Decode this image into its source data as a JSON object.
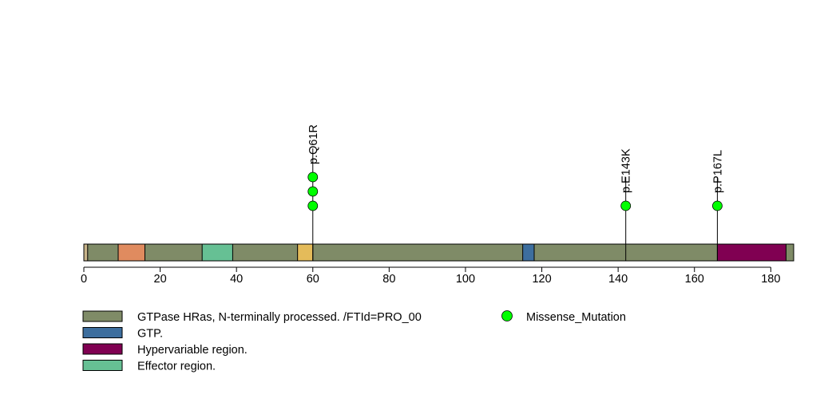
{
  "chart_data": {
    "type": "lollipop",
    "protein_length": 186,
    "x_ticks": [
      0,
      20,
      40,
      60,
      80,
      100,
      120,
      140,
      160,
      180
    ],
    "xlim": [
      0,
      186
    ],
    "domains": [
      {
        "name": "GTPase HRas, N-terminally processed. /FTId=PRO_00",
        "start": 1,
        "end": 186,
        "color": "#7f8b67"
      },
      {
        "start": 9,
        "end": 16,
        "color": "#e08b5f"
      },
      {
        "name": "Effector region.",
        "start": 31,
        "end": 39,
        "color": "#66c094"
      },
      {
        "start": 56,
        "end": 60,
        "color": "#e4bb5a"
      },
      {
        "name": "GTP.",
        "start": 115,
        "end": 118,
        "color": "#3d6e9e"
      },
      {
        "name": "Hypervariable region.",
        "start": 166,
        "end": 184,
        "color": "#800052"
      }
    ],
    "mutations": [
      {
        "label": "p.Q61R",
        "position": 60,
        "count": 3,
        "type": "Missense_Mutation"
      },
      {
        "label": "p.E143K",
        "position": 142,
        "count": 1,
        "type": "Missense_Mutation"
      },
      {
        "label": "p.P167L",
        "position": 166,
        "count": 1,
        "type": "Missense_Mutation"
      }
    ],
    "mutation_color": "#00ff00",
    "backbone_color": "#c8b48a"
  },
  "legend": {
    "items": [
      {
        "label": "GTPase HRas, N-terminally processed. /FTId=PRO_00",
        "color": "#7f8b67"
      },
      {
        "label": "GTP.",
        "color": "#3d6e9e"
      },
      {
        "label": "Hypervariable region.",
        "color": "#800052"
      },
      {
        "label": "Effector region.",
        "color": "#66c094"
      }
    ],
    "mutation_label": "Missense_Mutation"
  }
}
